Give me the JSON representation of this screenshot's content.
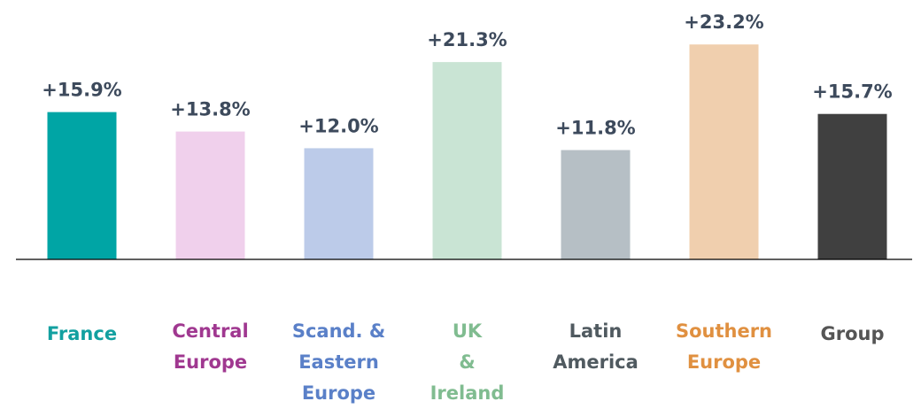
{
  "chart_data": {
    "type": "bar",
    "categories": [
      [
        "France"
      ],
      [
        "Central",
        "Europe"
      ],
      [
        "Scand. &",
        "Eastern",
        "Europe"
      ],
      [
        "UK",
        "&",
        "Ireland"
      ],
      [
        "Latin",
        "America"
      ],
      [
        "Southern",
        "Europe"
      ],
      [
        "Group"
      ]
    ],
    "values": [
      15.9,
      13.8,
      12.0,
      21.3,
      11.8,
      23.2,
      15.7
    ],
    "value_labels": [
      "+15.9%",
      "+13.8%",
      "+12.0%",
      "+21.3%",
      "+11.8%",
      "+23.2%",
      "+15.7%"
    ],
    "colors": [
      "#00a5a5",
      "#f0d0ec",
      "#bccbe9",
      "#c9e4d4",
      "#b6bfc5",
      "#f0cfae",
      "#404040"
    ],
    "label_colors": [
      "#12a0a0",
      "#a03890",
      "#5a80c8",
      "#80bc90",
      "#505a60",
      "#e09040",
      "#555555"
    ],
    "ylim": [
      0,
      28
    ]
  }
}
